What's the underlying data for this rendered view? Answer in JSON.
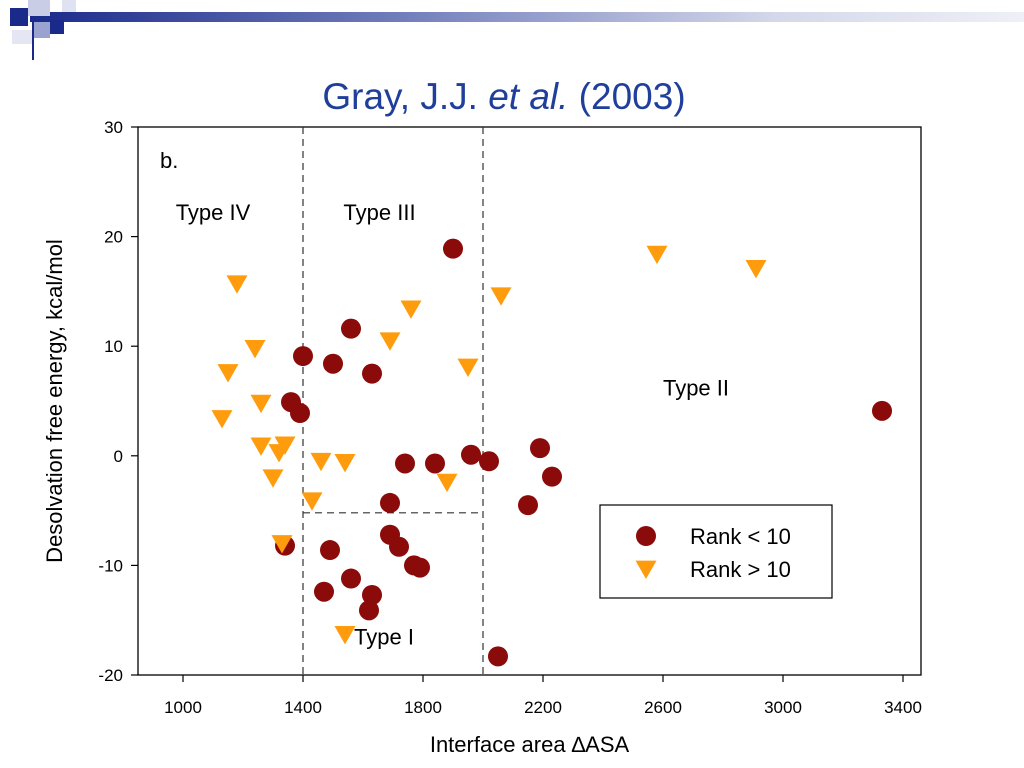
{
  "slide": {
    "title_prefix": "Gray, J.J. ",
    "title_italic": "et al.",
    "title_suffix": " (2003)"
  },
  "colors": {
    "title": "#1f3f9a",
    "rank_lt_10": "#8b0a0a",
    "rank_gt_10": "#ff9c0d",
    "header_band": "#1a2a8a"
  },
  "chart_data": {
    "type": "scatter",
    "panel_label": "b.",
    "xlabel": "Interface area ∆ASA",
    "ylabel": "Desolvation free energy, kcal/mol",
    "xlim": [
      850,
      3460
    ],
    "ylim": [
      -20,
      30
    ],
    "xticks": [
      1000,
      1400,
      1800,
      2200,
      2600,
      3000,
      3400
    ],
    "yticks": [
      -20,
      -10,
      0,
      10,
      20,
      30
    ],
    "region_labels": [
      {
        "text": "Type IV",
        "x": 1100,
        "y": 21.5
      },
      {
        "text": "Type III",
        "x": 1655,
        "y": 21.5
      },
      {
        "text": "Type II",
        "x": 2710,
        "y": 5.5
      },
      {
        "text": "Type I",
        "x": 1670,
        "y": -17.2
      }
    ],
    "divider_lines": [
      {
        "x1": 1400,
        "y1": 30,
        "x2": 1400,
        "y2": -20
      },
      {
        "x1": 2000,
        "y1": 30,
        "x2": 2000,
        "y2": -20
      },
      {
        "x1": 1400,
        "y1": -5.2,
        "x2": 2000,
        "y2": -5.2
      }
    ],
    "legend": {
      "placement": "bottom-right"
    },
    "series": [
      {
        "name": "Rank < 10",
        "marker": "circle",
        "color": "#8b0a0a",
        "points": [
          [
            1900,
            18.9
          ],
          [
            1560,
            11.6
          ],
          [
            1400,
            9.1
          ],
          [
            1500,
            8.4
          ],
          [
            1630,
            7.5
          ],
          [
            1360,
            4.9
          ],
          [
            1390,
            3.9
          ],
          [
            1740,
            -0.7
          ],
          [
            1840,
            -0.7
          ],
          [
            1960,
            0.1
          ],
          [
            2020,
            -0.5
          ],
          [
            2190,
            0.7
          ],
          [
            2230,
            -1.9
          ],
          [
            2150,
            -4.5
          ],
          [
            1690,
            -4.3
          ],
          [
            1340,
            -8.2
          ],
          [
            1490,
            -8.6
          ],
          [
            1690,
            -7.2
          ],
          [
            1720,
            -8.3
          ],
          [
            1770,
            -10.0
          ],
          [
            1790,
            -10.2
          ],
          [
            1560,
            -11.2
          ],
          [
            1470,
            -12.4
          ],
          [
            1630,
            -12.7
          ],
          [
            1620,
            -14.1
          ],
          [
            2050,
            -18.3
          ],
          [
            3330,
            4.1
          ]
        ]
      },
      {
        "name": "Rank > 10",
        "marker": "triangle-down",
        "color": "#ff9c0d",
        "points": [
          [
            1180,
            15.7
          ],
          [
            1240,
            9.8
          ],
          [
            1150,
            7.6
          ],
          [
            1130,
            3.4
          ],
          [
            1260,
            4.8
          ],
          [
            1260,
            0.9
          ],
          [
            1340,
            1.0
          ],
          [
            1320,
            0.3
          ],
          [
            1300,
            -2.0
          ],
          [
            1460,
            -0.5
          ],
          [
            1540,
            -0.6
          ],
          [
            1430,
            -4.1
          ],
          [
            1330,
            -8.0
          ],
          [
            1540,
            -16.3
          ],
          [
            1690,
            10.5
          ],
          [
            1760,
            13.4
          ],
          [
            1950,
            8.1
          ],
          [
            1880,
            -2.4
          ],
          [
            2060,
            14.6
          ],
          [
            2580,
            18.4
          ],
          [
            2910,
            17.1
          ]
        ]
      }
    ]
  }
}
